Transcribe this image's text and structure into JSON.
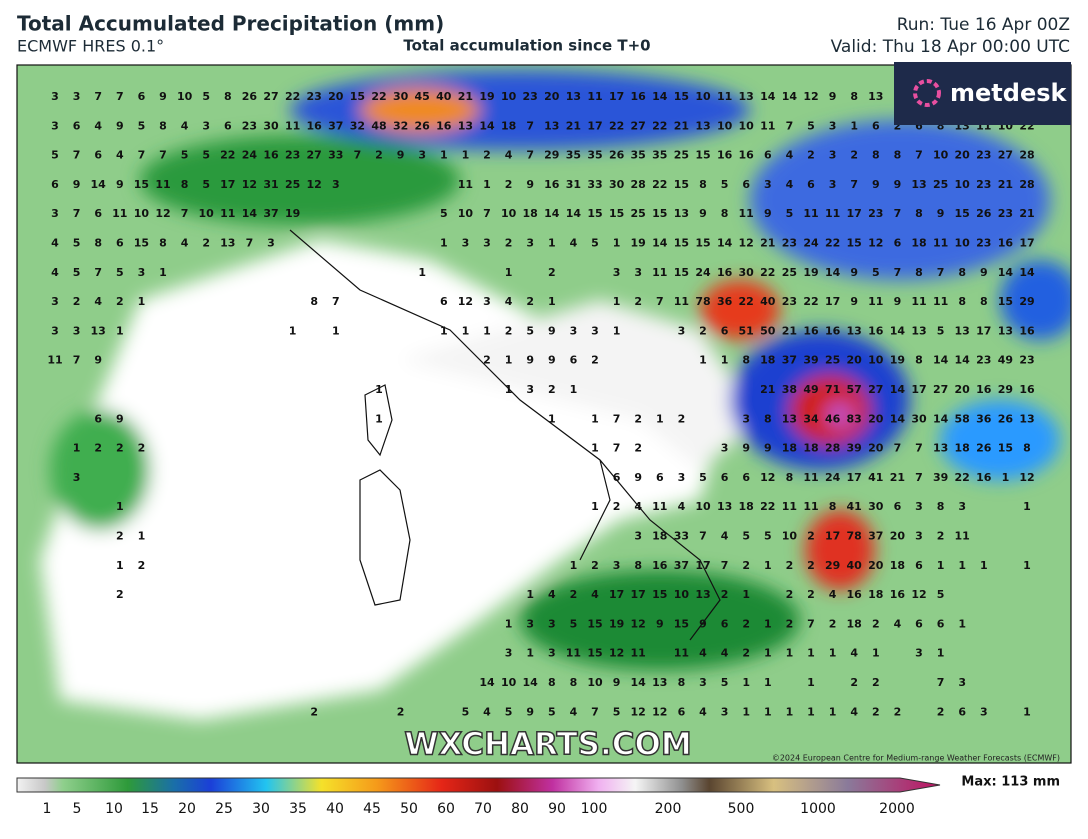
{
  "header": {
    "title": "Total Accumulated Precipitation (mm)",
    "model": "ECMWF HRES 0.1°",
    "subtitle": "Total accumulation since T+0",
    "run": "Run: Tue 16 Apr 00Z",
    "valid": "Valid: Thu 18 Apr 00:00 UTC"
  },
  "logo": "metdesk",
  "watermark": "WXCHARTS.COM",
  "copyright": "©2024 European Centre for Medium-range Weather Forecasts (ECMWF)",
  "colorbar": {
    "labels": [
      1,
      5,
      10,
      15,
      20,
      25,
      30,
      35,
      40,
      45,
      50,
      60,
      70,
      80,
      90,
      100,
      200,
      500,
      1000,
      2000
    ],
    "max": "Max: 113 mm"
  },
  "grid_labels": {
    "rows": [
      [
        3,
        3,
        7,
        7,
        6,
        9,
        10,
        5,
        8,
        26,
        27,
        22,
        23,
        20,
        15,
        22,
        30,
        45,
        40,
        21,
        19,
        10,
        23,
        20,
        13,
        11,
        17,
        16,
        14,
        15,
        10,
        11,
        13,
        14,
        14,
        12,
        9,
        8,
        13
      ],
      [
        3,
        6,
        4,
        9,
        5,
        8,
        4,
        3,
        6,
        23,
        30,
        11,
        16,
        37,
        32,
        48,
        32,
        26,
        16,
        13,
        14,
        18,
        7,
        13,
        21,
        17,
        22,
        27,
        22,
        21,
        13,
        10,
        10,
        11,
        7,
        5,
        3,
        1,
        6,
        2,
        6,
        8,
        13,
        11,
        10,
        22
      ],
      [
        5,
        7,
        6,
        4,
        7,
        7,
        5,
        5,
        22,
        24,
        16,
        23,
        27,
        33,
        7,
        2,
        9,
        3,
        1,
        1,
        2,
        4,
        7,
        29,
        35,
        35,
        26,
        35,
        35,
        25,
        15,
        16,
        16,
        6,
        4,
        2,
        3,
        2,
        8,
        8,
        7,
        10,
        20,
        23,
        27,
        28
      ],
      [
        6,
        9,
        14,
        9,
        15,
        11,
        8,
        5,
        17,
        12,
        31,
        25,
        12,
        3,
        null,
        null,
        null,
        null,
        null,
        11,
        1,
        2,
        9,
        16,
        31,
        33,
        30,
        28,
        22,
        15,
        8,
        5,
        6,
        3,
        4,
        6,
        3,
        7,
        9,
        9,
        13,
        25,
        10,
        23,
        21,
        28
      ],
      [
        3,
        7,
        6,
        11,
        10,
        12,
        7,
        10,
        11,
        14,
        37,
        19,
        null,
        null,
        null,
        null,
        null,
        null,
        5,
        10,
        7,
        10,
        18,
        14,
        14,
        15,
        15,
        25,
        15,
        13,
        9,
        8,
        11,
        9,
        5,
        11,
        11,
        17,
        23,
        7,
        8,
        9,
        15,
        26,
        23,
        21
      ],
      [
        4,
        5,
        8,
        6,
        15,
        8,
        4,
        2,
        13,
        7,
        3,
        null,
        null,
        null,
        null,
        null,
        null,
        null,
        1,
        3,
        3,
        2,
        3,
        1,
        4,
        5,
        1,
        19,
        14,
        15,
        15,
        14,
        12,
        21,
        23,
        24,
        22,
        15,
        12,
        6,
        18,
        11,
        10,
        23,
        16,
        17
      ],
      [
        4,
        5,
        7,
        5,
        3,
        1,
        null,
        null,
        null,
        null,
        null,
        null,
        null,
        null,
        null,
        null,
        null,
        1,
        null,
        null,
        null,
        1,
        null,
        2,
        null,
        null,
        3,
        3,
        11,
        15,
        24,
        16,
        30,
        22,
        25,
        19,
        14,
        9,
        5,
        7,
        8,
        7,
        8,
        9,
        14,
        14
      ],
      [
        3,
        2,
        4,
        2,
        1,
        null,
        null,
        null,
        null,
        null,
        null,
        null,
        8,
        7,
        null,
        null,
        null,
        null,
        6,
        12,
        3,
        4,
        2,
        1,
        null,
        null,
        1,
        2,
        7,
        11,
        78,
        36,
        22,
        40,
        23,
        22,
        17,
        9,
        11,
        9,
        11,
        11,
        8,
        8,
        15,
        29
      ],
      [
        3,
        3,
        13,
        1,
        null,
        null,
        null,
        null,
        null,
        null,
        null,
        1,
        null,
        1,
        null,
        null,
        null,
        null,
        1,
        1,
        1,
        2,
        5,
        9,
        3,
        3,
        1,
        null,
        null,
        3,
        2,
        6,
        51,
        50,
        21,
        16,
        16,
        13,
        16,
        14,
        13,
        5,
        13,
        17,
        13,
        16
      ],
      [
        11,
        7,
        9,
        null,
        null,
        null,
        null,
        null,
        null,
        null,
        null,
        null,
        null,
        null,
        null,
        null,
        null,
        null,
        null,
        null,
        2,
        1,
        9,
        9,
        6,
        2,
        null,
        null,
        null,
        null,
        1,
        1,
        8,
        18,
        37,
        39,
        25,
        20,
        10,
        19,
        8,
        14,
        14,
        23,
        49,
        23
      ],
      [
        null,
        null,
        null,
        null,
        null,
        null,
        null,
        null,
        null,
        null,
        null,
        null,
        null,
        null,
        null,
        1,
        null,
        null,
        null,
        null,
        null,
        1,
        3,
        2,
        1,
        null,
        null,
        null,
        null,
        null,
        null,
        null,
        null,
        21,
        38,
        49,
        71,
        57,
        27,
        14,
        17,
        27,
        20,
        16,
        29,
        16
      ],
      [
        null,
        null,
        6,
        9,
        null,
        null,
        null,
        null,
        null,
        null,
        null,
        null,
        null,
        null,
        null,
        1,
        null,
        null,
        null,
        null,
        null,
        null,
        null,
        1,
        null,
        1,
        7,
        2,
        1,
        2,
        null,
        null,
        3,
        8,
        13,
        34,
        46,
        83,
        20,
        14,
        30,
        14,
        58,
        36,
        26,
        13
      ],
      [
        null,
        1,
        2,
        2,
        2,
        null,
        null,
        null,
        null,
        null,
        null,
        null,
        null,
        null,
        null,
        null,
        null,
        null,
        null,
        null,
        null,
        null,
        null,
        null,
        null,
        1,
        7,
        2,
        null,
        null,
        null,
        3,
        9,
        9,
        18,
        18,
        28,
        39,
        20,
        7,
        7,
        13,
        18,
        26,
        15,
        8
      ],
      [
        null,
        3,
        null,
        null,
        null,
        null,
        null,
        null,
        null,
        null,
        null,
        null,
        null,
        null,
        null,
        null,
        null,
        null,
        null,
        null,
        null,
        null,
        null,
        null,
        null,
        null,
        6,
        9,
        6,
        3,
        5,
        6,
        6,
        12,
        8,
        11,
        24,
        17,
        41,
        21,
        7,
        39,
        22,
        16,
        1,
        12
      ],
      [
        null,
        null,
        null,
        1,
        null,
        null,
        null,
        null,
        null,
        null,
        null,
        null,
        null,
        null,
        null,
        null,
        null,
        null,
        null,
        null,
        null,
        null,
        null,
        null,
        null,
        1,
        2,
        4,
        11,
        4,
        10,
        13,
        18,
        22,
        11,
        11,
        8,
        41,
        30,
        6,
        3,
        8,
        3,
        null,
        null,
        1
      ],
      [
        null,
        null,
        null,
        2,
        1,
        null,
        null,
        null,
        null,
        null,
        null,
        null,
        null,
        null,
        null,
        null,
        null,
        null,
        null,
        null,
        null,
        null,
        null,
        null,
        null,
        null,
        null,
        3,
        18,
        33,
        7,
        4,
        5,
        5,
        10,
        2,
        17,
        78,
        37,
        20,
        3,
        2,
        11
      ],
      [
        null,
        null,
        null,
        1,
        2,
        null,
        null,
        null,
        null,
        null,
        null,
        null,
        null,
        null,
        null,
        null,
        null,
        null,
        null,
        null,
        null,
        null,
        null,
        null,
        1,
        2,
        3,
        8,
        16,
        37,
        17,
        7,
        2,
        1,
        2,
        2,
        29,
        40,
        20,
        18,
        6,
        1,
        1,
        1,
        null,
        1
      ],
      [
        null,
        null,
        null,
        2,
        null,
        null,
        null,
        null,
        null,
        null,
        null,
        null,
        null,
        null,
        null,
        null,
        null,
        null,
        null,
        null,
        null,
        null,
        1,
        4,
        2,
        4,
        17,
        17,
        15,
        10,
        13,
        2,
        1,
        null,
        2,
        2,
        4,
        16,
        18,
        16,
        12,
        5
      ],
      [
        null,
        null,
        null,
        null,
        null,
        null,
        null,
        null,
        null,
        null,
        null,
        null,
        null,
        null,
        null,
        null,
        null,
        null,
        null,
        null,
        null,
        1,
        3,
        3,
        5,
        15,
        19,
        12,
        9,
        15,
        9,
        6,
        2,
        1,
        2,
        7,
        2,
        18,
        2,
        4,
        6,
        6,
        1
      ],
      [
        null,
        null,
        null,
        null,
        null,
        null,
        null,
        null,
        null,
        null,
        null,
        null,
        null,
        null,
        null,
        null,
        null,
        null,
        null,
        null,
        null,
        3,
        1,
        3,
        11,
        15,
        12,
        11,
        null,
        11,
        4,
        4,
        2,
        1,
        1,
        1,
        1,
        4,
        1,
        null,
        3,
        1
      ],
      [
        null,
        null,
        null,
        null,
        null,
        null,
        null,
        null,
        null,
        null,
        null,
        null,
        null,
        null,
        null,
        null,
        null,
        null,
        null,
        null,
        14,
        10,
        14,
        8,
        8,
        10,
        9,
        14,
        13,
        8,
        3,
        5,
        1,
        1,
        null,
        1,
        null,
        2,
        2,
        null,
        null,
        7,
        3
      ],
      [
        null,
        null,
        null,
        null,
        null,
        null,
        null,
        null,
        null,
        null,
        null,
        null,
        2,
        null,
        null,
        null,
        2,
        null,
        null,
        5,
        4,
        5,
        9,
        5,
        4,
        7,
        5,
        12,
        12,
        6,
        4,
        3,
        1,
        1,
        1,
        1,
        1,
        4,
        2,
        2,
        null,
        2,
        6,
        3,
        null,
        1
      ]
    ]
  }
}
